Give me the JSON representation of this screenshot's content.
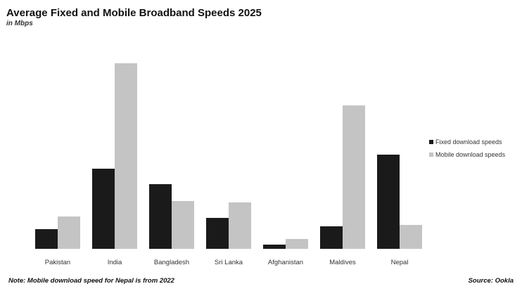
{
  "chart_data": {
    "type": "bar",
    "title": "Average Fixed and Mobile Broadband Speeds 2025",
    "subtitle": "in Mbps",
    "categories": [
      "Pakistan",
      "India",
      "Bangladesh",
      "Sri Lanka",
      "Afghanistan",
      "Maldives",
      "Nepal"
    ],
    "series": [
      {
        "name": "Fixed download speeds",
        "color": "#1a1a1a",
        "values": [
          14,
          57,
          46,
          22,
          3,
          16,
          67
        ]
      },
      {
        "name": "Mobile download speeds",
        "color": "#c4c4c4",
        "values": [
          23,
          132,
          34,
          33,
          7,
          102,
          17
        ]
      }
    ],
    "ylim": [
      0,
      140
    ],
    "grid": false,
    "legend": "right",
    "note": "Note: Mobile download speed for Nepal is from 2022",
    "source": "Source: Ookla"
  }
}
